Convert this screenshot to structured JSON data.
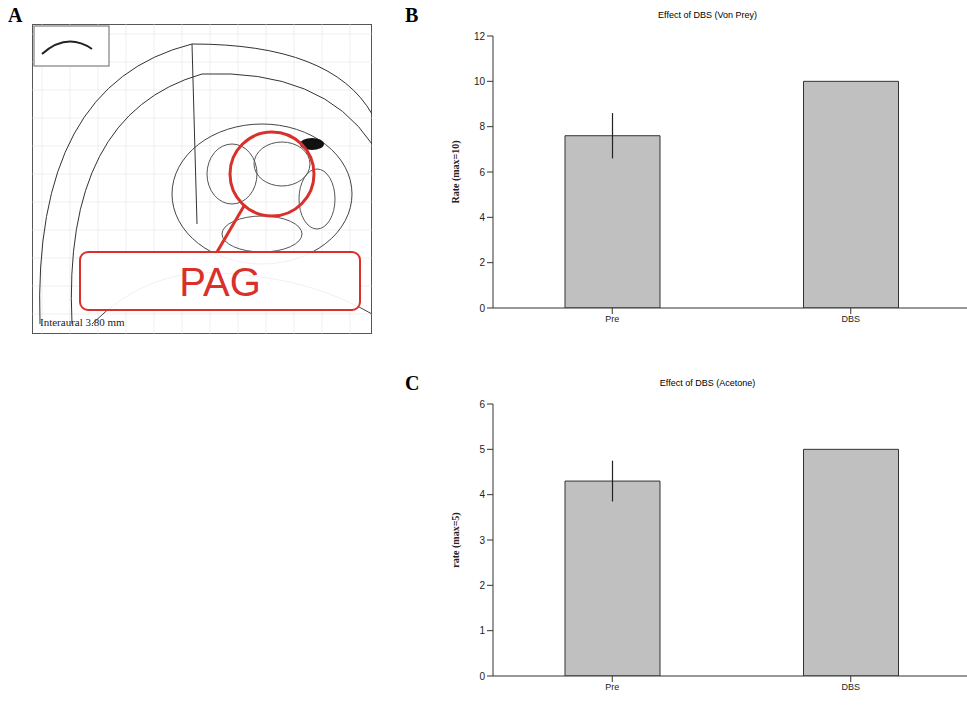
{
  "figure": {
    "A": {
      "label": "A",
      "annotation": "PAG",
      "caption": "Interaural 3.80 mm",
      "color": "#d9302c"
    }
  },
  "chart_data": [
    {
      "label": "B",
      "type": "bar",
      "title": "Effect of DBS (Von Prey)",
      "y_label": "Rate (max=10)",
      "categories": [
        "Pre",
        "DBS"
      ],
      "values": [
        7.6,
        10
      ],
      "error": [
        1.0,
        0
      ],
      "color": "#c0c0c0",
      "ylim": [
        0,
        12
      ],
      "yticks": [
        0,
        2,
        4,
        6,
        8,
        10,
        12
      ]
    },
    {
      "label": "C",
      "type": "bar",
      "title": "Effect of DBS (Acetone)",
      "y_label": "rate (max=5)",
      "categories": [
        "Pre",
        "DBS"
      ],
      "values": [
        4.3,
        5
      ],
      "error": [
        0.45,
        0
      ],
      "color": "#c0c0c0",
      "ylim": [
        0,
        6
      ],
      "yticks": [
        0,
        1,
        2,
        3,
        4,
        5,
        6
      ]
    }
  ]
}
